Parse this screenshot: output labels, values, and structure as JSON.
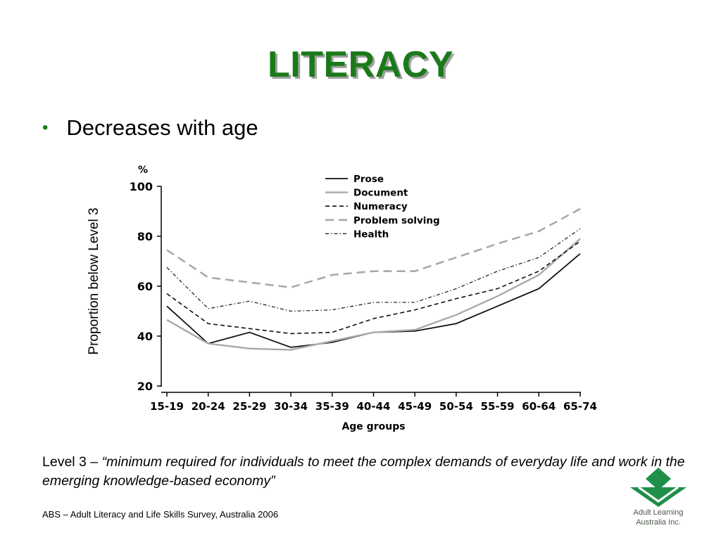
{
  "slide": {
    "title": "LITERACY",
    "bullet": "Decreases with age",
    "y_axis_label": "Proportion below Level 3",
    "quote_prefix": "Level 3 – ",
    "quote_text": "“minimum required for individuals to meet the complex demands of everyday life and work in the emerging knowledge-based economy”",
    "source": "ABS – Adult Literacy and Life Skills Survey, Australia 2006",
    "logo_line1": "Adult Learning",
    "logo_line2": "Australia Inc.",
    "colors": {
      "title": "#1a7a1a",
      "logo": "#1f8f4a"
    }
  },
  "chart_data": {
    "type": "line",
    "unit_label": "%",
    "xlabel": "Age groups",
    "ylim": [
      20,
      100
    ],
    "yticks": [
      20,
      40,
      60,
      80,
      100
    ],
    "categories": [
      "15-19",
      "20-24",
      "25-29",
      "30-34",
      "35-39",
      "40-44",
      "45-49",
      "50-54",
      "55-59",
      "60-64",
      "65-74"
    ],
    "legend_position": "top-center",
    "series": [
      {
        "name": "Prose",
        "style": "solid-black",
        "values": [
          52,
          37,
          41.5,
          35.5,
          37.5,
          41.5,
          42,
          45,
          52,
          59,
          73
        ]
      },
      {
        "name": "Document",
        "style": "solid-gray",
        "values": [
          46.5,
          37,
          35,
          34.5,
          38,
          41.5,
          42.5,
          48.5,
          56,
          64.5,
          79
        ]
      },
      {
        "name": "Numeracy",
        "style": "dashed-black",
        "values": [
          57,
          45,
          43,
          41,
          41.5,
          47,
          50.5,
          55,
          59,
          66,
          78
        ]
      },
      {
        "name": "Problem solving",
        "style": "dashed-gray",
        "values": [
          74.5,
          63.5,
          61.5,
          59.5,
          64.5,
          66,
          66,
          71.5,
          77,
          82,
          91
        ]
      },
      {
        "name": "Health",
        "style": "dashdot-black",
        "values": [
          67.5,
          51,
          54,
          50,
          50.5,
          53.5,
          53.5,
          59,
          66,
          71.5,
          83
        ]
      }
    ]
  }
}
